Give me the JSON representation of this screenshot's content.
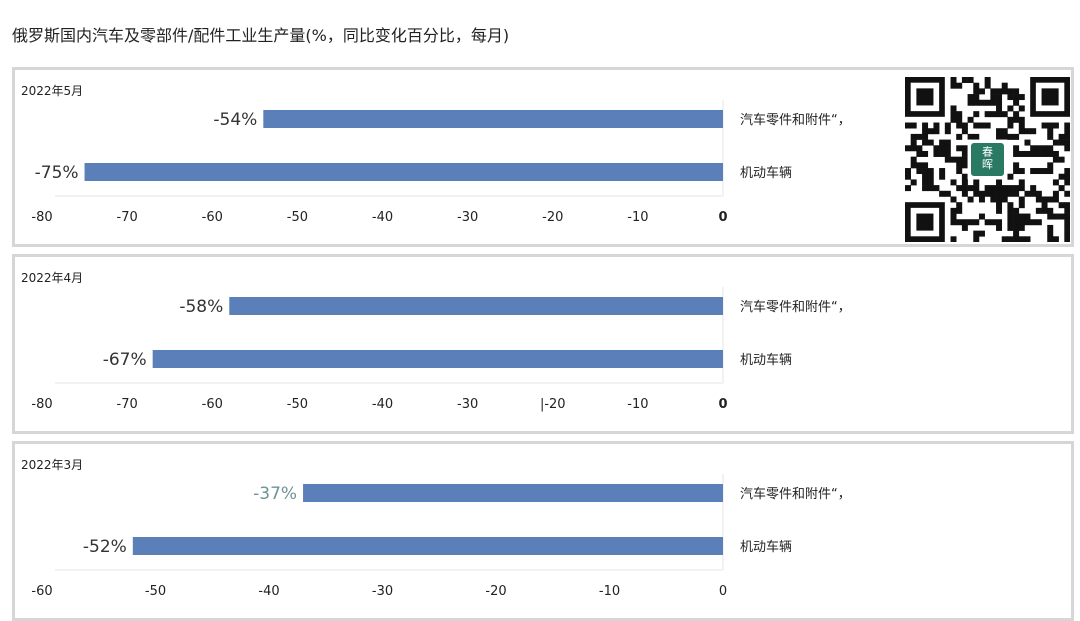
{
  "page": {
    "title": "俄罗斯国内汽车及零部件/配件工业生产量(%，同比变化百分比，每月)"
  },
  "colors": {
    "bar": "#5b7fb8",
    "label_default": "#333333",
    "label_muted": "#6f9395",
    "panel_border": "#d6d6d6",
    "qr_badge": "#2a7a63"
  },
  "qr": {
    "badge_text": "春\n晖"
  },
  "chart_data": [
    {
      "type": "bar",
      "orientation": "horizontal",
      "panel_label": "2022年5月",
      "categories": [
        "汽车零件和附件“，",
        "机动车辆"
      ],
      "values": [
        -54,
        -75
      ],
      "data_labels": [
        "-54%",
        "-75%"
      ],
      "xlim": [
        -80,
        0
      ],
      "xticks": [
        "-80",
        "-70",
        "-60",
        "-50",
        "-40",
        "-30",
        "-20",
        "-10",
        "0"
      ]
    },
    {
      "type": "bar",
      "orientation": "horizontal",
      "panel_label": "2022年4月",
      "categories": [
        "汽车零件和附件“，",
        "机动车辆"
      ],
      "values": [
        -58,
        -67
      ],
      "data_labels": [
        "-58%",
        "-67%"
      ],
      "xlim": [
        -80,
        0
      ],
      "xticks": [
        "-80",
        "-70",
        "-60",
        "-50",
        "-40",
        "-30",
        "|-20",
        "-10",
        "0"
      ]
    },
    {
      "type": "bar",
      "orientation": "horizontal",
      "panel_label": "2022年3月",
      "categories": [
        "汽车零件和附件“，",
        "机动车辆"
      ],
      "values": [
        -37,
        -52
      ],
      "data_labels": [
        "-37%",
        "-52%"
      ],
      "data_label_muted": [
        true,
        false
      ],
      "xlim": [
        -60,
        0
      ],
      "xticks": [
        "-60",
        "-50",
        "-40",
        "-30",
        "-20",
        "-10",
        "0"
      ]
    }
  ]
}
